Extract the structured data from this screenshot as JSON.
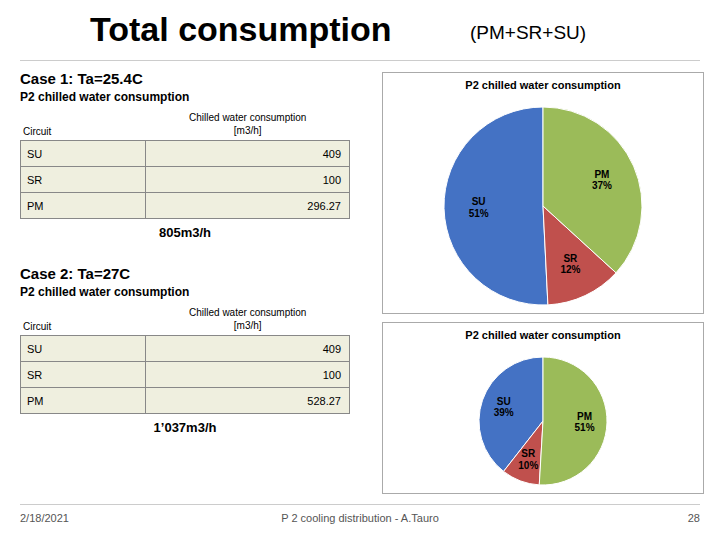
{
  "title": "Total consumption",
  "subtitle": "(PM+SR+SU)",
  "tables": [
    {
      "label": "Case 1: Ta=25.4C",
      "sublabel": "P2 chilled water consumption",
      "col1": "Circuit",
      "col2_header": [
        "Chilled water consumption",
        "[m3/h]"
      ],
      "rows": [
        [
          "SU",
          "409"
        ],
        [
          "SR",
          "100"
        ],
        [
          "PM",
          "296.27"
        ]
      ],
      "total": "805m3/h"
    },
    {
      "label": "Case 2: Ta=27C",
      "sublabel": "P2 chilled water consumption",
      "col1": "Circuit",
      "col2_header": [
        "Chilled water consumption",
        "[m3/h]"
      ],
      "rows": [
        [
          "SU",
          "409"
        ],
        [
          "SR",
          "100"
        ],
        [
          "PM",
          "528.27"
        ]
      ],
      "total": "1’037m3/h"
    }
  ],
  "table_color": "#EFEFDF",
  "table_border_color": "#888888",
  "chart_data": [
    {
      "type": "pie",
      "title": "P2 chilled water consumption",
      "categories": [
        "SU",
        "SR",
        "PM"
      ],
      "values": [
        409,
        100,
        296.27
      ],
      "value_labels": [
        "51%",
        "12%",
        "37%"
      ],
      "colors": [
        "#4472C4",
        "#C0504D",
        "#9BBB59"
      ]
    },
    {
      "type": "pie",
      "title": "P2 chilled water consumption",
      "categories": [
        "SU",
        "SR",
        "PM"
      ],
      "values": [
        409,
        100,
        528.27
      ],
      "value_labels": [
        "39%",
        "10%",
        "51%"
      ],
      "colors": [
        "#4472C4",
        "#C0504D",
        "#9BBB59"
      ]
    }
  ],
  "footer": {
    "left": "2/18/2021",
    "center": "P 2 cooling distribution - A.Tauro",
    "right": "28"
  }
}
